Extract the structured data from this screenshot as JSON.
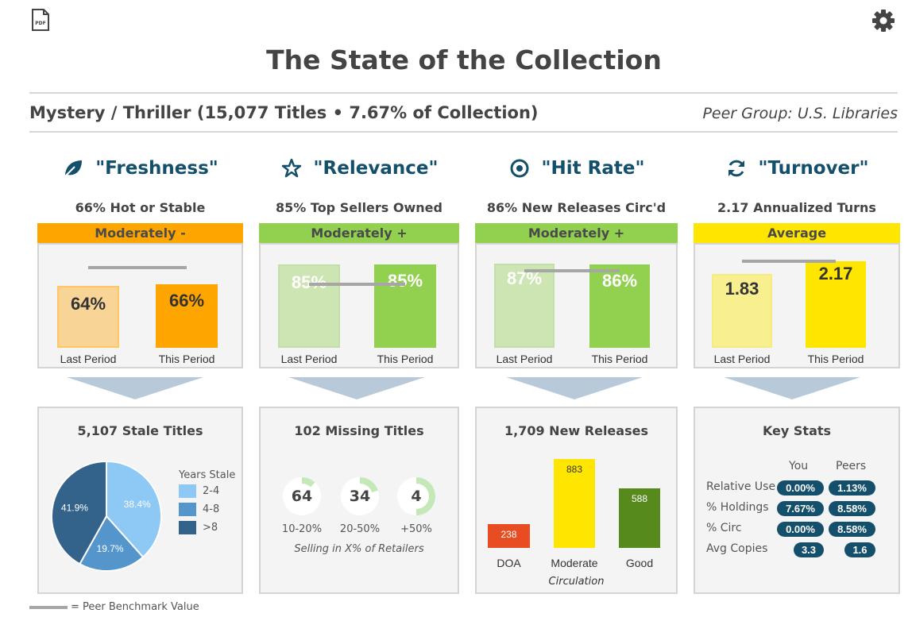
{
  "header": {
    "title": "The State of the Collection",
    "subtitle": "Mystery / Thriller (15,077 Titles • 7.67% of Collection)",
    "peer_group": "Peer Group: U.S. Libraries",
    "icons": {
      "pdf": "pdf-file-icon",
      "settings": "gear-icon"
    }
  },
  "colors": {
    "accent": "#14506b",
    "orange": "#ffa500",
    "green": "#92d050",
    "yellow": "#ffe600",
    "doa": "#e84c22",
    "good": "#578a1c",
    "benchmark": "#a6a6a6",
    "pie_dark": "#33628a",
    "pie_mid": "#5496cc",
    "pie_light": "#8ec8f4"
  },
  "metrics": [
    {
      "name": "\"Freshness\"",
      "icon": "leaf-icon",
      "desc": "66% Hot or Stable",
      "rating": "Moderately -",
      "rating_color": "#ffa500",
      "last_label": "64%",
      "this_label": "66%",
      "last_value": 64,
      "this_value": 66,
      "benchmark": 73,
      "last_period": "Last Period",
      "this_period": "This Period"
    },
    {
      "name": "\"Relevance\"",
      "icon": "star-icon",
      "desc": "85% Top Sellers Owned",
      "rating": "Moderately +",
      "rating_color": "#92d050",
      "last_label": "85%",
      "this_label": "85%",
      "last_value": 85,
      "this_value": 85,
      "benchmark": 72,
      "last_period": "Last Period",
      "this_period": "This Period"
    },
    {
      "name": "\"Hit Rate\"",
      "icon": "target-icon",
      "desc": "86% New Releases Circ'd",
      "rating": "Moderately +",
      "rating_color": "#92d050",
      "last_label": "87%",
      "this_label": "86%",
      "last_value": 87,
      "this_value": 86,
      "benchmark": 80,
      "last_period": "Last Period",
      "this_period": "This Period"
    },
    {
      "name": "\"Turnover\"",
      "icon": "refresh-icon",
      "desc": "2.17 Annualized Turns",
      "rating": "Average",
      "rating_color": "#ffe600",
      "last_label": "1.83",
      "this_label": "2.17",
      "last_value": 1.83,
      "this_value": 2.17,
      "benchmark": 2.12,
      "last_period": "Last Period",
      "this_period": "This Period"
    }
  ],
  "stale": {
    "title": "5,107 Stale Titles",
    "legend_title": "Years Stale",
    "slices": [
      {
        "label": "2-4",
        "value": 38.4,
        "display": "38.4%"
      },
      {
        "label": "4-8",
        "value": 19.7,
        "display": "19.7%"
      },
      {
        "label": ">8",
        "value": 41.9,
        "display": "41.9%"
      }
    ]
  },
  "missing": {
    "title": "102 Missing Titles",
    "caption": "Selling in X% of Retailers",
    "items": [
      {
        "count": "64",
        "range": "10-20%",
        "fraction": 0.12
      },
      {
        "count": "34",
        "range": "20-50%",
        "fraction": 0.2
      },
      {
        "count": "4",
        "range": "+50%",
        "fraction": 0.5
      }
    ]
  },
  "releases": {
    "title": "1,709 New Releases",
    "caption": "Circulation",
    "categories": [
      "DOA",
      "Moderate",
      "Good"
    ],
    "values": [
      238,
      883,
      588
    ],
    "labels": [
      "238",
      "883",
      "588"
    ]
  },
  "key_stats": {
    "title": "Key Stats",
    "col_you": "You",
    "col_peers": "Peers",
    "rows": [
      {
        "label": "Relative Use",
        "you": "0.00%",
        "peers": "1.13%"
      },
      {
        "label": "% Holdings",
        "you": "7.67%",
        "peers": "8.58%"
      },
      {
        "label": "% Circ",
        "you": "0.00%",
        "peers": "8.58%"
      },
      {
        "label": "Avg Copies",
        "you": "3.3",
        "peers": "1.6"
      }
    ]
  },
  "footnote": "= Peer Benchmark Value"
}
